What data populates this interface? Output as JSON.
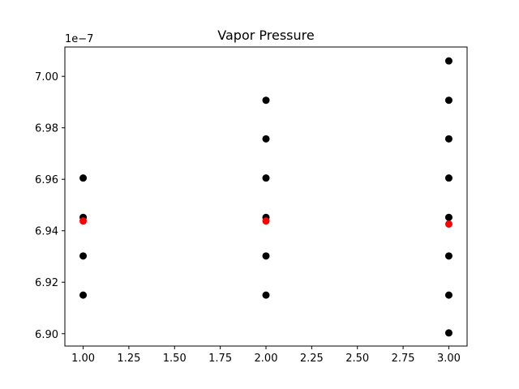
{
  "chart_data": {
    "type": "scatter",
    "title": "Vapor Pressure",
    "xlabel": "",
    "ylabel": "",
    "y_offset_label": "1e−7",
    "xlim": [
      0.9,
      3.1
    ],
    "ylim": [
      6.8952,
      7.0114
    ],
    "x_ticks": [
      1.0,
      1.25,
      1.5,
      1.75,
      2.0,
      2.25,
      2.5,
      2.75,
      3.0
    ],
    "x_tick_labels": [
      "1.00",
      "1.25",
      "1.50",
      "1.75",
      "2.00",
      "2.25",
      "2.50",
      "2.75",
      "3.00"
    ],
    "y_ticks": [
      6.9,
      6.92,
      6.94,
      6.96,
      6.98,
      7.0
    ],
    "y_tick_labels": [
      "6.90",
      "6.92",
      "6.94",
      "6.96",
      "6.98",
      "7.00"
    ],
    "grid": false,
    "legend": "none",
    "series": [
      {
        "color": "#000000",
        "points": [
          {
            "x": 1,
            "y": 6.9605
          },
          {
            "x": 1,
            "y": 6.9452
          },
          {
            "x": 1,
            "y": 6.9302
          },
          {
            "x": 1,
            "y": 6.915
          },
          {
            "x": 2,
            "y": 6.9907
          },
          {
            "x": 2,
            "y": 6.9757
          },
          {
            "x": 2,
            "y": 6.9605
          },
          {
            "x": 2,
            "y": 6.9452
          },
          {
            "x": 2,
            "y": 6.9302
          },
          {
            "x": 2,
            "y": 6.915
          },
          {
            "x": 3,
            "y": 7.006
          },
          {
            "x": 3,
            "y": 6.9907
          },
          {
            "x": 3,
            "y": 6.9757
          },
          {
            "x": 3,
            "y": 6.9605
          },
          {
            "x": 3,
            "y": 6.9452
          },
          {
            "x": 3,
            "y": 6.9302
          },
          {
            "x": 3,
            "y": 6.915
          },
          {
            "x": 3,
            "y": 6.9003
          }
        ]
      },
      {
        "color": "#ff0000",
        "points": [
          {
            "x": 1,
            "y": 6.9438
          },
          {
            "x": 2,
            "y": 6.9438
          },
          {
            "x": 3,
            "y": 6.9426
          }
        ]
      }
    ]
  }
}
